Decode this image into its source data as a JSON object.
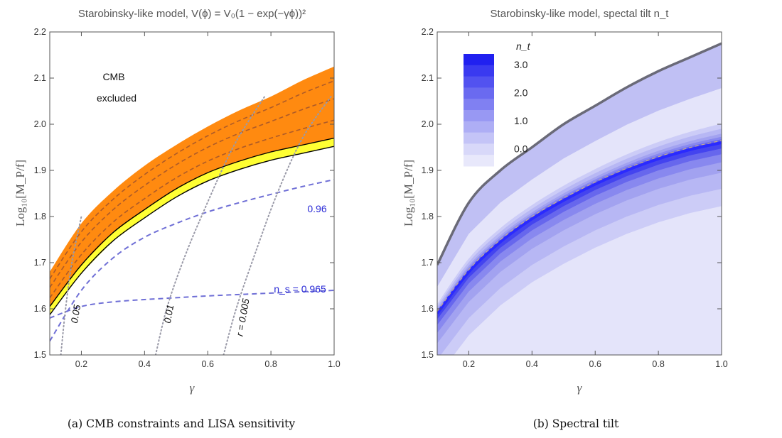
{
  "chart_data": [
    {
      "type": "area",
      "title": "Starobinsky-like model, V(ϕ) = V₀(1 − exp(−γϕ))²",
      "caption": "(a) CMB constraints and LISA sensitivity",
      "xlabel": "γ",
      "ylabel": "Log₁₀[M_P/f]",
      "xlim": [
        0.1,
        1.0
      ],
      "ylim": [
        1.5,
        2.2
      ],
      "xticks": [
        "0.2",
        "0.4",
        "0.6",
        "0.8",
        "1.0"
      ],
      "yticks": [
        "1.5",
        "1.6",
        "1.7",
        "1.8",
        "1.9",
        "2.0",
        "2.1",
        "2.2"
      ],
      "grid": false,
      "colors": {
        "band": "#ff8a10",
        "thin_band": "#ffff33",
        "ns_lines": "#6f6fd6",
        "r_lines": "#9a9aa8",
        "inner_lines": "#a0522d"
      },
      "annotations": {
        "cmb_line1": "CMB",
        "cmb_line2": "excluded",
        "ns_096": "0.96",
        "ns_0965": "n_s = 0.965",
        "r_005": "0.05",
        "r_001": "0.01",
        "r_0005": "r = 0.005"
      },
      "series": [
        {
          "x": [
            0.1,
            0.2,
            0.3,
            0.4,
            0.5,
            0.6,
            0.7,
            0.8,
            0.9,
            1.0
          ],
          "upper": [
            1.68,
            1.785,
            1.855,
            1.91,
            1.955,
            1.995,
            2.03,
            2.06,
            2.095,
            2.125
          ],
          "lower": [
            1.605,
            1.695,
            1.765,
            1.815,
            1.86,
            1.895,
            1.92,
            1.94,
            1.955,
            1.97
          ]
        },
        {
          "name": "n_s = 0.96",
          "x": [
            0.1,
            0.2,
            0.3,
            0.4,
            0.5,
            0.6,
            0.7,
            0.8,
            0.9,
            1.0
          ],
          "y": [
            1.53,
            1.64,
            1.71,
            1.755,
            1.785,
            1.81,
            1.83,
            1.848,
            1.865,
            1.88
          ]
        },
        {
          "name": "n_s = 0.965",
          "x": [
            0.1,
            0.2,
            0.3,
            0.4,
            0.5,
            0.6,
            0.7,
            0.8,
            0.9,
            1.0
          ],
          "y": [
            1.58,
            1.605,
            1.615,
            1.62,
            1.624,
            1.628,
            1.631,
            1.634,
            1.637,
            1.64
          ]
        },
        {
          "name": "r = 0.05",
          "x": [
            0.135,
            0.15,
            0.17,
            0.2
          ],
          "y": [
            1.5,
            1.6,
            1.7,
            1.8
          ]
        },
        {
          "name": "r = 0.01",
          "x": [
            0.435,
            0.47,
            0.52,
            0.58,
            0.68,
            0.78
          ],
          "y": [
            1.5,
            1.6,
            1.7,
            1.8,
            1.95,
            2.06
          ]
        },
        {
          "name": "r = 0.005",
          "x": [
            0.65,
            0.69,
            0.75,
            0.82,
            0.9,
            0.99
          ],
          "y": [
            1.5,
            1.6,
            1.72,
            1.85,
            1.97,
            2.06
          ]
        }
      ]
    },
    {
      "type": "heatmap",
      "title": "Starobinsky-like model, spectal tilt n_t",
      "caption": "(b) Spectral tilt",
      "xlabel": "γ",
      "ylabel": "Log₁₀[M_P/f]",
      "xlim": [
        0.1,
        1.0
      ],
      "ylim": [
        1.5,
        2.2
      ],
      "xticks": [
        "0.2",
        "0.4",
        "0.6",
        "0.8",
        "1.0"
      ],
      "yticks": [
        "1.5",
        "1.6",
        "1.7",
        "1.8",
        "1.9",
        "2.0",
        "2.1",
        "2.2"
      ],
      "grid": false,
      "legend": {
        "title": "n_t",
        "labels": [
          "3.0",
          "2.0",
          "1.0",
          "0.0"
        ],
        "placement": "top-left"
      },
      "colors": {
        "low": "#e4e4fa",
        "high": "#2020f0",
        "border": "#6a6a78"
      },
      "series": [
        {
          "x": [
            0.1,
            0.2,
            0.3,
            0.4,
            0.5,
            0.6,
            0.7,
            0.8,
            0.9,
            1.0
          ],
          "upper_boundary": [
            1.695,
            1.83,
            1.9,
            1.95,
            2.0,
            2.04,
            2.08,
            2.115,
            2.145,
            2.175
          ]
        },
        {
          "x": [
            0.1,
            0.2,
            0.3,
            0.4,
            0.5,
            0.6,
            0.7,
            0.8,
            0.9,
            1.0
          ],
          "ridge": [
            1.59,
            1.68,
            1.745,
            1.795,
            1.835,
            1.87,
            1.9,
            1.925,
            1.945,
            1.96
          ]
        }
      ]
    }
  ]
}
